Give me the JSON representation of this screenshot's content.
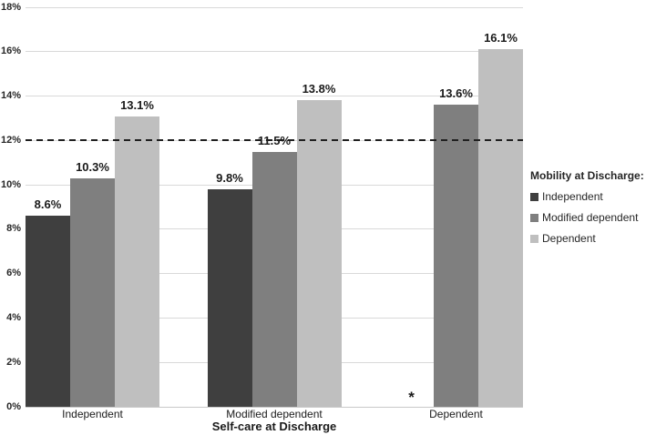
{
  "chart_data": {
    "type": "bar",
    "title": "",
    "xlabel": "Self-care at Discharge",
    "ylabel": "",
    "ylim": [
      0,
      18
    ],
    "ytick_step": 2,
    "ytick_labels": [
      "0%",
      "2%",
      "4%",
      "6%",
      "8%",
      "10%",
      "12%",
      "14%",
      "16%",
      "18%"
    ],
    "grid": true,
    "gridline_color": "#d9d9d9",
    "categories": [
      "Independent",
      "Modified dependent",
      "Dependent"
    ],
    "legend_title": "Mobility at Discharge:",
    "legend_position": "right",
    "series": [
      {
        "name": "Independent",
        "color": "#3f3f3f",
        "values": [
          8.6,
          9.8,
          null
        ],
        "labels": [
          "8.6%",
          "9.8%",
          "*"
        ]
      },
      {
        "name": "Modified dependent",
        "color": "#7f7f7f",
        "values": [
          10.3,
          11.5,
          13.6
        ],
        "labels": [
          "10.3%",
          "11.5%",
          "13.6%"
        ]
      },
      {
        "name": "Dependent",
        "color": "#bfbfbf",
        "values": [
          13.1,
          13.8,
          16.1
        ],
        "labels": [
          "13.1%",
          "13.8%",
          "16.1%"
        ]
      }
    ],
    "reference_line": {
      "value": 12,
      "style": "dashed",
      "color": "#1f1f1f"
    },
    "missing_data_marker": "*"
  }
}
